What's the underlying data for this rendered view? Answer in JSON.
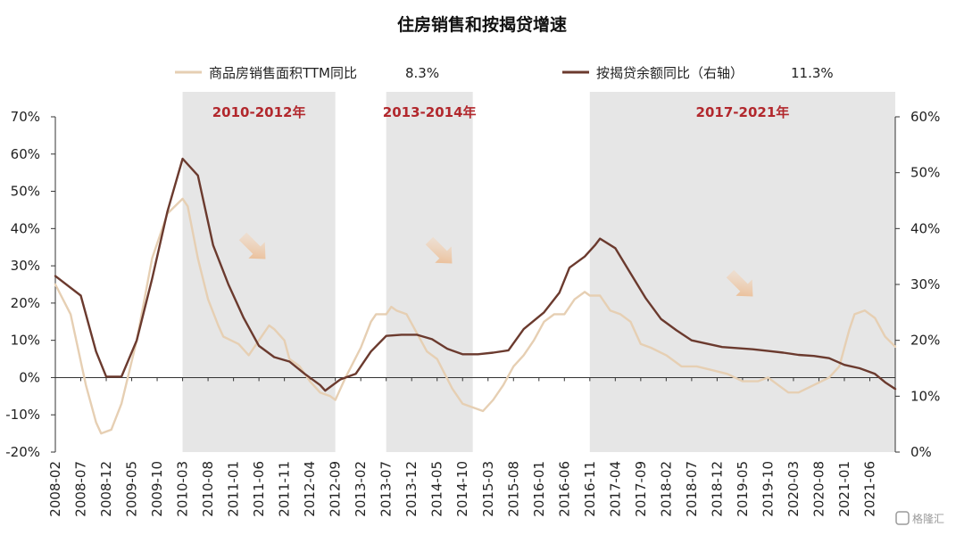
{
  "chart_data": {
    "type": "line",
    "title": "住房销售和按揭贷增速",
    "y_left": {
      "min": -20,
      "max": 70,
      "step": 10,
      "unit": "%"
    },
    "y_right": {
      "min": 0,
      "max": 60,
      "step": 10,
      "unit": "%"
    },
    "x_range": [
      "2008-02",
      "2021-11"
    ],
    "x_tick_labels": [
      "2008-02",
      "2008-07",
      "2008-12",
      "2009-05",
      "2009-10",
      "2010-03",
      "2010-08",
      "2011-01",
      "2011-06",
      "2011-11",
      "2012-04",
      "2012-09",
      "2013-02",
      "2013-07",
      "2013-12",
      "2014-05",
      "2014-10",
      "2015-03",
      "2015-08",
      "2016-01",
      "2016-06",
      "2016-11",
      "2017-04",
      "2017-09",
      "2018-02",
      "2018-07",
      "2018-12",
      "2019-05",
      "2019-10",
      "2020-03",
      "2020-08",
      "2021-01",
      "2021-06"
    ],
    "shaded_periods": [
      {
        "label": "2010-2012年",
        "start": "2010-03",
        "end": "2012-09"
      },
      {
        "label": "2013-2014年",
        "start": "2013-07",
        "end": "2014-12"
      },
      {
        "label": "2017-2021年",
        "start": "2016-11",
        "end": "2021-11"
      }
    ],
    "series": [
      {
        "name": "商品房销售面积TTM同比",
        "latest_label": "8.3%",
        "axis": "left",
        "color": "#e6cfb3",
        "points": [
          [
            "2008-02",
            25
          ],
          [
            "2008-05",
            17
          ],
          [
            "2008-08",
            -2
          ],
          [
            "2008-10",
            -12
          ],
          [
            "2008-11",
            -15
          ],
          [
            "2009-01",
            -14
          ],
          [
            "2009-03",
            -7
          ],
          [
            "2009-06",
            10
          ],
          [
            "2009-09",
            32
          ],
          [
            "2009-12",
            44
          ],
          [
            "2010-03",
            48
          ],
          [
            "2010-04",
            46
          ],
          [
            "2010-06",
            32
          ],
          [
            "2010-08",
            21
          ],
          [
            "2010-10",
            14
          ],
          [
            "2010-11",
            11
          ],
          [
            "2011-02",
            9
          ],
          [
            "2011-04",
            6
          ],
          [
            "2011-06",
            10
          ],
          [
            "2011-08",
            14
          ],
          [
            "2011-09",
            13
          ],
          [
            "2011-11",
            10
          ],
          [
            "2011-12",
            5
          ],
          [
            "2012-02",
            3
          ],
          [
            "2012-04",
            -1
          ],
          [
            "2012-06",
            -4
          ],
          [
            "2012-08",
            -5
          ],
          [
            "2012-09",
            -6
          ],
          [
            "2012-11",
            0
          ],
          [
            "2013-02",
            8
          ],
          [
            "2013-04",
            15
          ],
          [
            "2013-05",
            17
          ],
          [
            "2013-07",
            17
          ],
          [
            "2013-08",
            19
          ],
          [
            "2013-09",
            18
          ],
          [
            "2013-11",
            17
          ],
          [
            "2014-01",
            12
          ],
          [
            "2014-03",
            7
          ],
          [
            "2014-05",
            5
          ],
          [
            "2014-08",
            -3
          ],
          [
            "2014-10",
            -7
          ],
          [
            "2014-12",
            -8
          ],
          [
            "2015-02",
            -9
          ],
          [
            "2015-04",
            -6
          ],
          [
            "2015-06",
            -2
          ],
          [
            "2015-08",
            3
          ],
          [
            "2015-10",
            6
          ],
          [
            "2015-12",
            10
          ],
          [
            "2016-02",
            15
          ],
          [
            "2016-04",
            17
          ],
          [
            "2016-06",
            17
          ],
          [
            "2016-08",
            21
          ],
          [
            "2016-10",
            23
          ],
          [
            "2016-11",
            22
          ],
          [
            "2017-01",
            22
          ],
          [
            "2017-03",
            18
          ],
          [
            "2017-05",
            17
          ],
          [
            "2017-07",
            15
          ],
          [
            "2017-09",
            9
          ],
          [
            "2017-11",
            8
          ],
          [
            "2018-02",
            6
          ],
          [
            "2018-05",
            3
          ],
          [
            "2018-08",
            3
          ],
          [
            "2018-11",
            2
          ],
          [
            "2019-02",
            1
          ],
          [
            "2019-05",
            -1
          ],
          [
            "2019-08",
            -1
          ],
          [
            "2019-10",
            0
          ],
          [
            "2019-12",
            -2
          ],
          [
            "2020-02",
            -4
          ],
          [
            "2020-04",
            -4
          ],
          [
            "2020-07",
            -2
          ],
          [
            "2020-10",
            0
          ],
          [
            "2020-12",
            3
          ],
          [
            "2021-02",
            13
          ],
          [
            "2021-03",
            17
          ],
          [
            "2021-05",
            18
          ],
          [
            "2021-07",
            16
          ],
          [
            "2021-09",
            11
          ],
          [
            "2021-11",
            8.3
          ]
        ]
      },
      {
        "name": "按揭贷余额同比（右轴）",
        "latest_label": "11.3%",
        "axis": "right",
        "color": "#6b3a2e",
        "points": [
          [
            "2008-02",
            31.5
          ],
          [
            "2008-07",
            28
          ],
          [
            "2008-10",
            18
          ],
          [
            "2008-12",
            13.5
          ],
          [
            "2009-03",
            13.5
          ],
          [
            "2009-06",
            20
          ],
          [
            "2009-09",
            31
          ],
          [
            "2009-12",
            43
          ],
          [
            "2010-03",
            52.5
          ],
          [
            "2010-06",
            49.5
          ],
          [
            "2010-09",
            37
          ],
          [
            "2010-12",
            30
          ],
          [
            "2011-03",
            24
          ],
          [
            "2011-06",
            19
          ],
          [
            "2011-09",
            17
          ],
          [
            "2011-12",
            16.2
          ],
          [
            "2012-03",
            14
          ],
          [
            "2012-06",
            12
          ],
          [
            "2012-07",
            11
          ],
          [
            "2012-10",
            13
          ],
          [
            "2013-01",
            14
          ],
          [
            "2013-04",
            18
          ],
          [
            "2013-07",
            20.8
          ],
          [
            "2013-10",
            21
          ],
          [
            "2014-01",
            21
          ],
          [
            "2014-04",
            20.2
          ],
          [
            "2014-07",
            18.5
          ],
          [
            "2014-10",
            17.5
          ],
          [
            "2015-01",
            17.5
          ],
          [
            "2015-04",
            17.8
          ],
          [
            "2015-07",
            18.2
          ],
          [
            "2015-10",
            22
          ],
          [
            "2016-02",
            25
          ],
          [
            "2016-05",
            28.5
          ],
          [
            "2016-07",
            33
          ],
          [
            "2016-10",
            35
          ],
          [
            "2016-12",
            37
          ],
          [
            "2017-01",
            38.2
          ],
          [
            "2017-04",
            36.5
          ],
          [
            "2017-07",
            32
          ],
          [
            "2017-10",
            27.5
          ],
          [
            "2018-01",
            23.8
          ],
          [
            "2018-04",
            21.8
          ],
          [
            "2018-07",
            20
          ],
          [
            "2018-10",
            19.4
          ],
          [
            "2019-01",
            18.8
          ],
          [
            "2019-04",
            18.6
          ],
          [
            "2019-07",
            18.4
          ],
          [
            "2019-10",
            18.1
          ],
          [
            "2020-01",
            17.8
          ],
          [
            "2020-04",
            17.4
          ],
          [
            "2020-07",
            17.2
          ],
          [
            "2020-10",
            16.8
          ],
          [
            "2021-01",
            15.6
          ],
          [
            "2021-04",
            15
          ],
          [
            "2021-07",
            14
          ],
          [
            "2021-09",
            12.5
          ],
          [
            "2021-11",
            11.3
          ]
        ]
      }
    ]
  },
  "watermark": "格隆汇"
}
